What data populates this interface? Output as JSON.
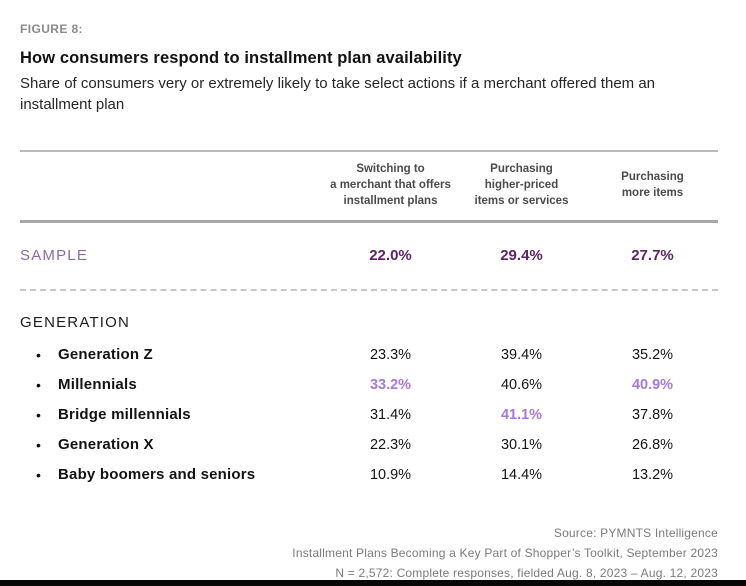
{
  "figure": {
    "label": "FIGURE 8:",
    "title": "How consumers respond to installment plan availability",
    "subtitle": "Share of consumers very or extremely likely to take select actions if a merchant offered them an installment plan"
  },
  "table": {
    "columns": [
      {
        "label": "Switching to\na merchant that offers\ninstallment plans"
      },
      {
        "label": "Purchasing\nhigher-priced\nitems or services"
      },
      {
        "label": "Purchasing\nmore items"
      }
    ],
    "sample": {
      "label": "SAMPLE",
      "values": [
        "22.0%",
        "29.4%",
        "27.7%"
      ]
    },
    "section_label": "GENERATION",
    "rows": [
      {
        "label": "Generation Z",
        "values": [
          {
            "text": "23.3%",
            "highlight": false
          },
          {
            "text": "39.4%",
            "highlight": false
          },
          {
            "text": "35.2%",
            "highlight": false
          }
        ]
      },
      {
        "label": "Millennials",
        "values": [
          {
            "text": "33.2%",
            "highlight": true
          },
          {
            "text": "40.6%",
            "highlight": false
          },
          {
            "text": "40.9%",
            "highlight": true
          }
        ]
      },
      {
        "label": "Bridge millennials",
        "values": [
          {
            "text": "31.4%",
            "highlight": false
          },
          {
            "text": "41.1%",
            "highlight": true
          },
          {
            "text": "37.8%",
            "highlight": false
          }
        ]
      },
      {
        "label": "Generation X",
        "values": [
          {
            "text": "22.3%",
            "highlight": false
          },
          {
            "text": "30.1%",
            "highlight": false
          },
          {
            "text": "26.8%",
            "highlight": false
          }
        ]
      },
      {
        "label": "Baby boomers and seniors",
        "values": [
          {
            "text": "10.9%",
            "highlight": false
          },
          {
            "text": "14.4%",
            "highlight": false
          },
          {
            "text": "13.2%",
            "highlight": false
          }
        ]
      }
    ],
    "bullet_glyph": "•"
  },
  "footer": {
    "lines": [
      "Source: PYMNTS Intelligence",
      "Installment Plans Becoming a Key Part of Shopper’s Toolkit, September 2023",
      "N = 2,572: Complete responses, fielded Aug. 8, 2023 – Aug. 12, 2023"
    ]
  },
  "colors": {
    "sample_value_purple": "#5e2266",
    "sample_label_purple": "#8e6b9e",
    "highlight_purple": "#a678d9",
    "figure_label_gray": "#8a8a8d",
    "footer_gray": "#7b7b7e",
    "bottom_bar_black": "#070707"
  },
  "chart_data": {
    "type": "table",
    "title": "How consumers respond to installment plan availability",
    "subtitle": "Share of consumers very or extremely likely to take select actions if a merchant offered them an installment plan",
    "unit": "percent",
    "columns": [
      "Switching to a merchant that offers installment plans",
      "Purchasing higher-priced items or services",
      "Purchasing more items"
    ],
    "rows": [
      {
        "group": "SAMPLE",
        "category": "Sample",
        "values": [
          22.0,
          29.4,
          27.7
        ]
      },
      {
        "group": "GENERATION",
        "category": "Generation Z",
        "values": [
          23.3,
          39.4,
          35.2
        ]
      },
      {
        "group": "GENERATION",
        "category": "Millennials",
        "values": [
          33.2,
          40.6,
          40.9
        ]
      },
      {
        "group": "GENERATION",
        "category": "Bridge millennials",
        "values": [
          31.4,
          41.1,
          37.8
        ]
      },
      {
        "group": "GENERATION",
        "category": "Generation X",
        "values": [
          22.3,
          30.1,
          26.8
        ]
      },
      {
        "group": "GENERATION",
        "category": "Baby boomers and seniors",
        "values": [
          10.9,
          14.4,
          13.2
        ]
      }
    ],
    "source_notes": [
      "Source: PYMNTS Intelligence",
      "Installment Plans Becoming a Key Part of Shopper’s Toolkit, September 2023",
      "N = 2,572: Complete responses, fielded Aug. 8, 2023 – Aug. 12, 2023"
    ]
  }
}
